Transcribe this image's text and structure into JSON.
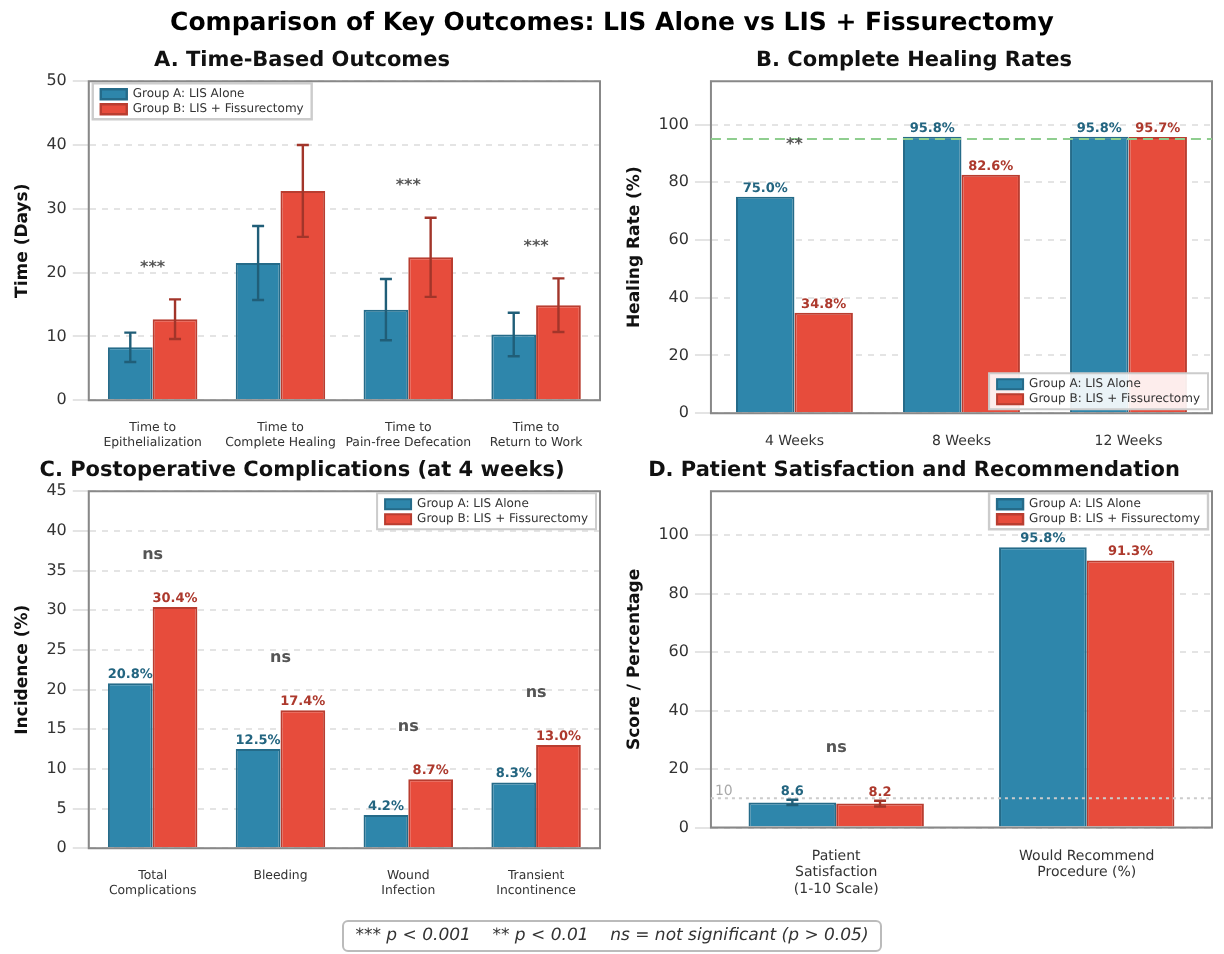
{
  "chart_data": [
    {
      "type": "bar",
      "title": "A. Time-Based Outcomes",
      "ylabel": "Time (Days)",
      "categories": [
        "Time to\nEpithelialization",
        "Time to\nComplete Healing",
        "Time to\nPain-free Defecation",
        "Time to\nReturn to Work"
      ],
      "series": [
        {
          "name": "Group A: LIS Alone",
          "color": "#2e86ab",
          "values": [
            8.3,
            21.5,
            14.2,
            10.3
          ],
          "errors": [
            2.3,
            5.8,
            4.8,
            3.4
          ]
        },
        {
          "name": "Group B: LIS + Fissurectomy",
          "color": "#e74c3c",
          "values": [
            12.7,
            32.8,
            22.4,
            14.9
          ],
          "errors": [
            3.1,
            7.2,
            6.2,
            4.2
          ]
        }
      ],
      "ylim": [
        0,
        50
      ],
      "yticks": [
        0,
        10,
        20,
        30,
        40,
        50
      ],
      "grid": "y",
      "legend": "top left",
      "annotations": [
        "Comparison of Key Outcomes: LIS Alone vs LIS + Fissurectomy",
        "***",
        "***",
        "***"
      ]
    },
    {
      "type": "bar",
      "title": "B. Complete Healing Rates",
      "ylabel": "Healing Rate (%)",
      "categories": [
        "4 Weeks",
        "8 Weeks",
        "12 Weeks"
      ],
      "series": [
        {
          "name": "Group A: LIS Alone",
          "color": "#2e86ab",
          "values": [
            75.0,
            95.8,
            95.8
          ],
          "value_labels": [
            "75.0%",
            "95.8%",
            "95.8%"
          ]
        },
        {
          "name": "Group B: LIS + Fissurectomy",
          "color": "#e74c3c",
          "values": [
            34.8,
            82.6,
            95.7
          ],
          "value_labels": [
            "34.8%",
            "82.6%",
            "95.7%"
          ]
        }
      ],
      "ylim": [
        0,
        115
      ],
      "yticks": [
        0,
        20,
        40,
        60,
        80,
        100
      ],
      "grid": "y",
      "legend": "bottom right",
      "ref_lines": [
        {
          "axis": "y",
          "value": 95,
          "color": "#8fce8f",
          "line_style": "dashed"
        }
      ],
      "annotations": [
        "**"
      ]
    },
    {
      "type": "bar",
      "title": "C. Postoperative Complications (at 4 weeks)",
      "ylabel": "Incidence (%)",
      "categories": [
        "Total\nComplications",
        "Bleeding",
        "Wound\nInfection",
        "Transient\nIncontinence"
      ],
      "series": [
        {
          "name": "Group A: LIS Alone",
          "color": "#2e86ab",
          "values": [
            20.8,
            12.5,
            4.2,
            8.3
          ],
          "value_labels": [
            "20.8%",
            "12.5%",
            "4.2%",
            "8.3%"
          ]
        },
        {
          "name": "Group B: LIS + Fissurectomy",
          "color": "#e74c3c",
          "values": [
            30.4,
            17.4,
            8.7,
            13.0
          ],
          "value_labels": [
            "30.4%",
            "17.4%",
            "8.7%",
            "13.0%"
          ]
        }
      ],
      "ylim": [
        0,
        45
      ],
      "yticks": [
        0,
        5,
        10,
        15,
        20,
        25,
        30,
        35,
        40,
        45
      ],
      "grid": "y",
      "legend": "top right",
      "annotations": [
        "ns",
        "ns",
        "ns",
        "ns"
      ]
    },
    {
      "type": "bar",
      "title": "D. Patient Satisfaction and Recommendation",
      "ylabel": "Score / Percentage",
      "categories": [
        "Patient\nSatisfaction\n(1-10 Scale)",
        "Would Recommend\nProcedure (%)"
      ],
      "series": [
        {
          "name": "Group A: LIS Alone",
          "color": "#2e86ab",
          "values": [
            8.6,
            95.8
          ],
          "errors": [
            0.9,
            null
          ],
          "value_labels": [
            "8.6",
            "95.8%"
          ]
        },
        {
          "name": "Group B: LIS + Fissurectomy",
          "color": "#e74c3c",
          "values": [
            8.2,
            91.3
          ],
          "errors": [
            1.0,
            null
          ],
          "value_labels": [
            "8.2",
            "91.3%"
          ]
        }
      ],
      "ylim": [
        0,
        115
      ],
      "yticks": [
        0,
        20,
        40,
        60,
        80,
        100
      ],
      "grid": "y",
      "legend": "top right",
      "ref_lines": [
        {
          "axis": "y",
          "value": 10,
          "label": "10",
          "color": "#cccccc",
          "line_style": "dotted"
        }
      ],
      "annotations": [
        "ns",
        "*** p < 0.001    ** p < 0.01    ns = not significant (p > 0.05)"
      ]
    }
  ]
}
